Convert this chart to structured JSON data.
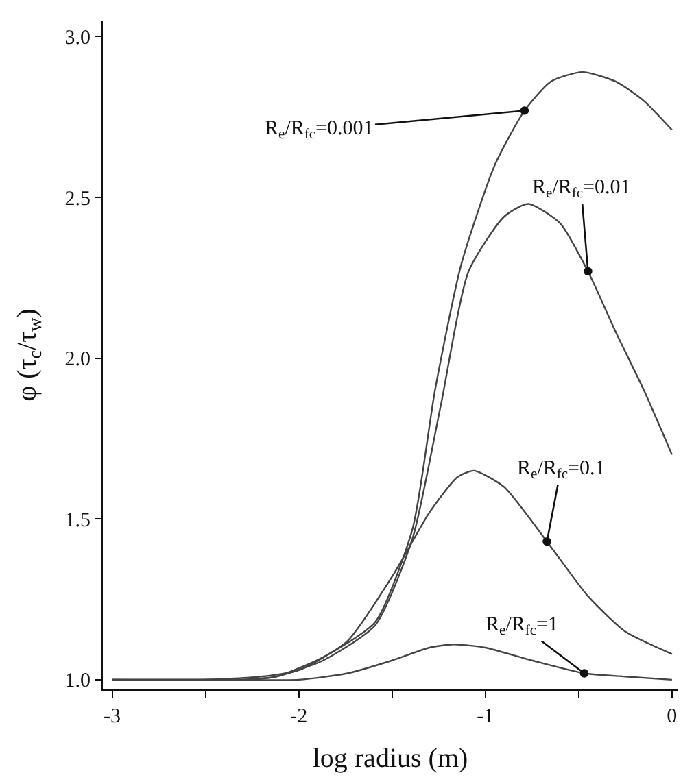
{
  "chart_data": {
    "type": "line",
    "xlabel": "log radius (m)",
    "ylabel": "φ (τ$_{c}$/τ$_{w}$)",
    "xlim": [
      -3.05,
      0.03
    ],
    "ylim": [
      0.97,
      3.05
    ],
    "xticks": [
      -3,
      {
        "value": -2.5,
        "label": null
      },
      -2,
      {
        "value": -1.5,
        "label": null
      },
      -1,
      {
        "value": -0.5,
        "label": null
      },
      0
    ],
    "yticks": [
      {
        "value": 1.0,
        "label": "1.0"
      },
      1.5,
      {
        "value": 2.0,
        "label": "2.0"
      },
      2.5,
      {
        "value": 3.0,
        "label": "3.0"
      }
    ],
    "marker": "none",
    "line_style": "solid",
    "series": [
      {
        "color": "#444444",
        "x": [
          -3,
          -2.55,
          -2.3,
          -2.12,
          -1.87,
          -1.59,
          -1.39,
          -1.27,
          -1.13,
          -0.95,
          -0.79,
          -0.65,
          -0.48,
          -0.3,
          -0.15,
          0
        ],
        "values": [
          1.0,
          1.0,
          1.0,
          1.01,
          1.07,
          1.18,
          1.47,
          1.9,
          2.29,
          2.6,
          2.77,
          2.86,
          2.89,
          2.86,
          2.8,
          2.71
        ]
      },
      {
        "color": "#444444",
        "x": [
          -3,
          -2.55,
          -2.3,
          -2.12,
          -1.87,
          -1.59,
          -1.39,
          -1.24,
          -1.09,
          -0.9,
          -0.77,
          -0.6,
          -0.45,
          -0.3,
          -0.15,
          0
        ],
        "values": [
          1.0,
          1.0,
          1.0,
          1.01,
          1.06,
          1.17,
          1.44,
          1.85,
          2.27,
          2.44,
          2.48,
          2.42,
          2.27,
          2.08,
          1.9,
          1.7
        ]
      },
      {
        "color": "#444444",
        "x": [
          -3,
          -2.5,
          -2.2,
          -2.0,
          -1.74,
          -1.49,
          -1.3,
          -1.15,
          -1.06,
          -0.9,
          -0.67,
          -0.45,
          -0.25,
          0
        ],
        "values": [
          1.0,
          1.0,
          1.01,
          1.03,
          1.12,
          1.33,
          1.52,
          1.63,
          1.65,
          1.6,
          1.43,
          1.26,
          1.15,
          1.08
        ]
      },
      {
        "color": "#444444",
        "x": [
          -3,
          -2.5,
          -2.0,
          -1.74,
          -1.5,
          -1.3,
          -1.17,
          -1.0,
          -0.75,
          -0.47,
          -0.25,
          0
        ],
        "values": [
          1.0,
          1.0,
          1.0,
          1.02,
          1.06,
          1.1,
          1.11,
          1.1,
          1.06,
          1.02,
          1.01,
          1.0
        ]
      }
    ],
    "annotations": [
      {
        "text": "R$_{e}$/R$_{fc}$=0.001",
        "x": -0.79,
        "y": 2.77
      },
      {
        "text": "R$_{e}$/R$_{fc}$=0.01",
        "x": -0.45,
        "y": 2.27
      },
      {
        "text": "R$_{e}$/R$_{fc}$=0.1",
        "x": -0.67,
        "y": 1.43
      },
      {
        "text": "R$_{e}$/R$_{fc}$=1",
        "x": -0.47,
        "y": 1.02
      }
    ]
  }
}
